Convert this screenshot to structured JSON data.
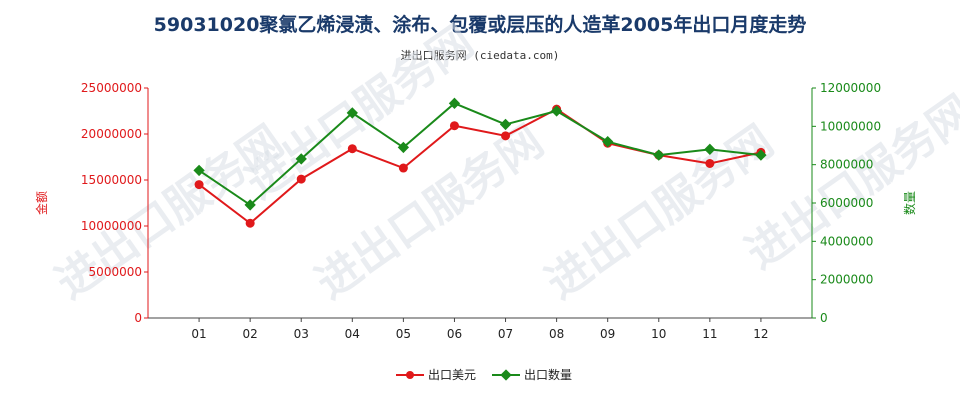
{
  "header": {
    "title": "59031020聚氯乙烯浸渍、涂布、包覆或层压的人造革2005年出口月度走势",
    "subtitle": "进出口服务网 (ciedata.com)"
  },
  "watermark": "进出口服务网",
  "colors": {
    "money": "#e0191b",
    "quantity": "#1a8a1a",
    "title": "#1a3a6a"
  },
  "chart_data": {
    "type": "line",
    "title": "59031020聚氯乙烯浸渍、涂布、包覆或层压的人造革2005年出口月度走势",
    "categories": [
      "01",
      "02",
      "03",
      "04",
      "05",
      "06",
      "07",
      "08",
      "09",
      "10",
      "11",
      "12"
    ],
    "ylabel_left": "金额",
    "ylabel_right": "数量",
    "ylim_left": [
      0,
      25000000
    ],
    "ylim_right": [
      0,
      12000000
    ],
    "yticks_left": [
      "0",
      "5000000",
      "10000000",
      "15000000",
      "20000000",
      "25000000"
    ],
    "yticks_right": [
      "0",
      "2000000",
      "4000000",
      "6000000",
      "8000000",
      "10000000",
      "12000000"
    ],
    "series": [
      {
        "name": "出口美元",
        "axis": "left",
        "color": "#e0191b",
        "values": [
          14500000,
          10300000,
          15100000,
          18400000,
          16300000,
          20900000,
          19800000,
          22700000,
          19000000,
          17700000,
          16800000,
          18000000
        ]
      },
      {
        "name": "出口数量",
        "axis": "right",
        "color": "#1a8a1a",
        "values": [
          7700000,
          5900000,
          8300000,
          10700000,
          8900000,
          11200000,
          10100000,
          10800000,
          9200000,
          8500000,
          8800000,
          8500000
        ]
      }
    ],
    "grid": false,
    "legend_position": "bottom"
  }
}
